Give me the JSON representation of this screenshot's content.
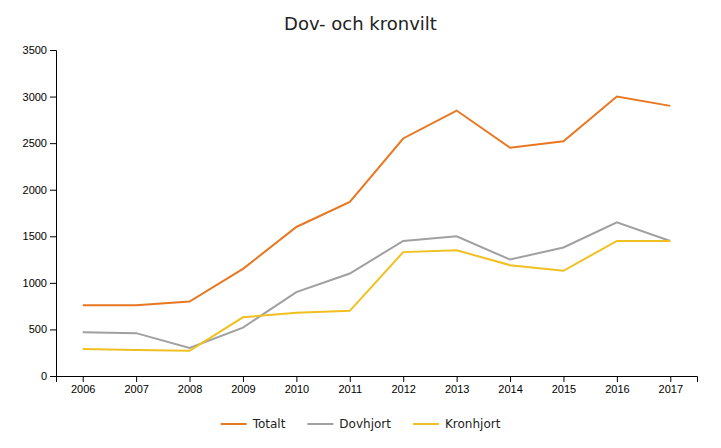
{
  "chart_data": {
    "type": "line",
    "title": "Dov- och kronvilt",
    "x": [
      2006,
      2007,
      2008,
      2009,
      2010,
      2011,
      2012,
      2013,
      2014,
      2015,
      2016,
      2017
    ],
    "xlim": [
      2005.5,
      2017.5
    ],
    "xticks": [
      2006,
      2007,
      2008,
      2009,
      2010,
      2011,
      2012,
      2013,
      2014,
      2015,
      2016,
      2017
    ],
    "ylim": [
      0,
      3500
    ],
    "yticks": [
      0,
      500,
      1000,
      1500,
      2000,
      2500,
      3000,
      3500
    ],
    "grid": false,
    "legend": "bottom",
    "series": [
      {
        "name": "Totalt",
        "color": "#e87722",
        "values": [
          760,
          760,
          800,
          1150,
          1600,
          1870,
          2550,
          2850,
          2450,
          2520,
          3000,
          2900
        ]
      },
      {
        "name": "Dovhjort",
        "color": "#a0a0a0",
        "values": [
          470,
          460,
          300,
          520,
          900,
          1100,
          1450,
          1500,
          1250,
          1380,
          1650,
          1450
        ]
      },
      {
        "name": "Kronhjort",
        "color": "#f0c020",
        "values": [
          290,
          280,
          270,
          630,
          680,
          700,
          1330,
          1350,
          1190,
          1130,
          1450,
          1450
        ]
      }
    ]
  }
}
